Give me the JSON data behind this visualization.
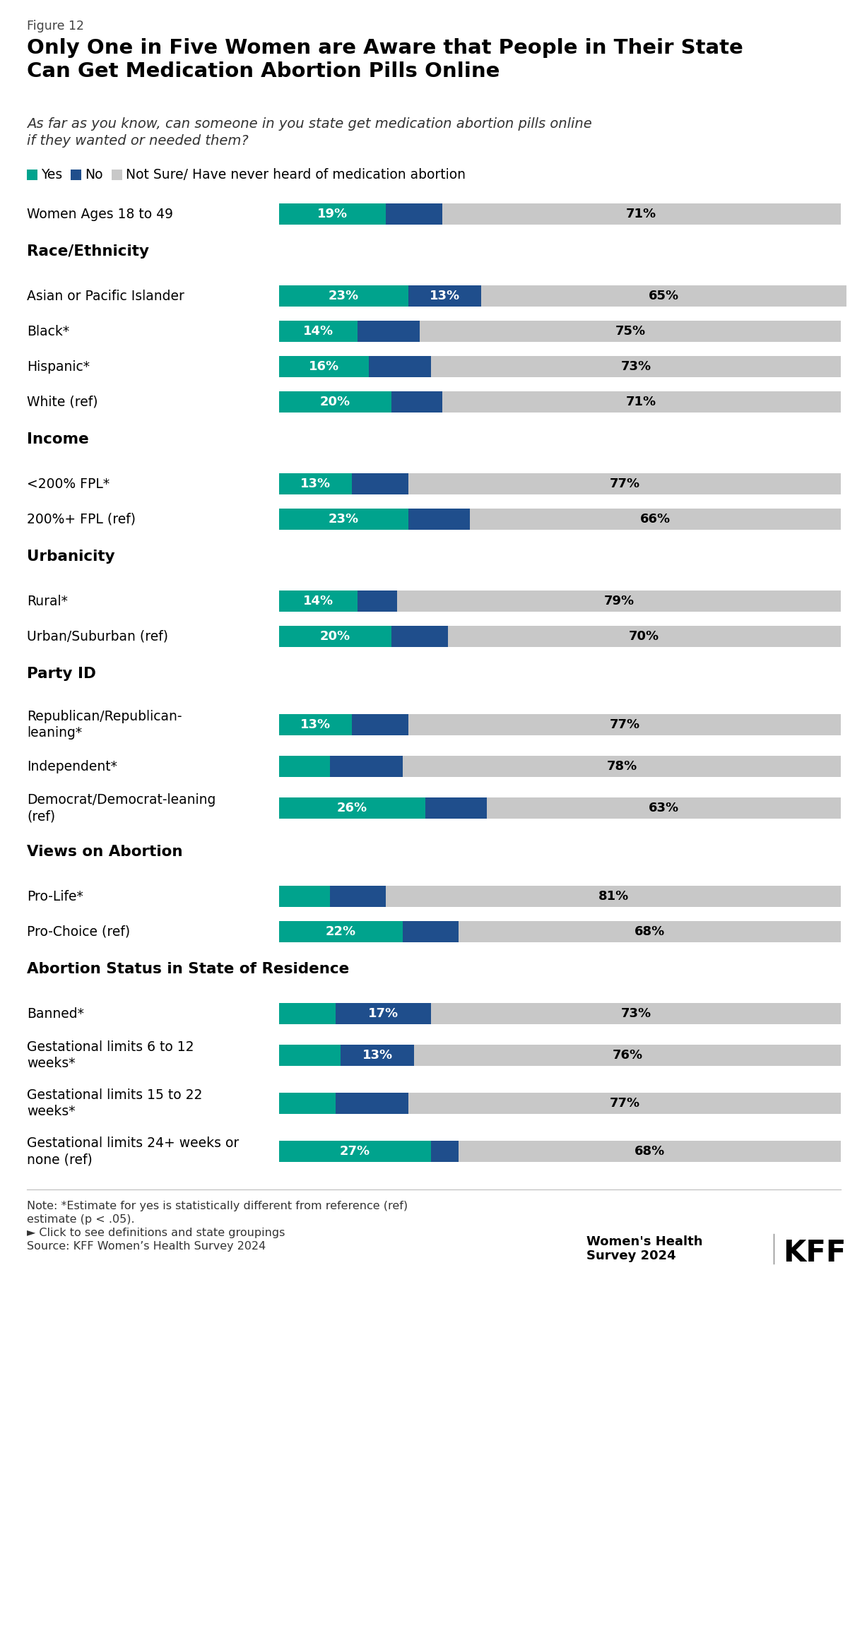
{
  "figure_label": "Figure 12",
  "title": "Only One in Five Women are Aware that People in Their State\nCan Get Medication Abortion Pills Online",
  "subtitle": "As far as you know, can someone in you state get medication abortion pills online\nif they wanted or needed them?",
  "legend": [
    "Yes",
    "No",
    "Not Sure/ Have never heard of medication abortion"
  ],
  "colors": {
    "yes": "#00a38d",
    "no": "#1f4e8c",
    "not_sure": "#c8c8c8",
    "bg": "#ffffff"
  },
  "rows": [
    {
      "label": "Women Ages 18 to 49",
      "yes": 19,
      "no": 10,
      "not_sure": 71,
      "is_section": false,
      "is_overall": true,
      "show_yes_label": true,
      "show_no_label": false,
      "show_ns_label": true
    },
    {
      "label": "Race/Ethnicity",
      "yes": null,
      "no": null,
      "not_sure": null,
      "is_section": true
    },
    {
      "label": "Asian or Pacific Islander",
      "yes": 23,
      "no": 13,
      "not_sure": 65,
      "is_section": false,
      "is_overall": false,
      "show_yes_label": true,
      "show_no_label": true,
      "show_ns_label": true
    },
    {
      "label": "Black*",
      "yes": 14,
      "no": 11,
      "not_sure": 75,
      "is_section": false,
      "is_overall": false,
      "show_yes_label": true,
      "show_no_label": false,
      "show_ns_label": true
    },
    {
      "label": "Hispanic*",
      "yes": 16,
      "no": 11,
      "not_sure": 73,
      "is_section": false,
      "is_overall": false,
      "show_yes_label": true,
      "show_no_label": false,
      "show_ns_label": true
    },
    {
      "label": "White (ref)",
      "yes": 20,
      "no": 9,
      "not_sure": 71,
      "is_section": false,
      "is_overall": false,
      "show_yes_label": true,
      "show_no_label": false,
      "show_ns_label": true
    },
    {
      "label": "Income",
      "yes": null,
      "no": null,
      "not_sure": null,
      "is_section": true
    },
    {
      "label": "<200% FPL*",
      "yes": 13,
      "no": 10,
      "not_sure": 77,
      "is_section": false,
      "is_overall": false,
      "show_yes_label": true,
      "show_no_label": false,
      "show_ns_label": true
    },
    {
      "label": "200%+ FPL (ref)",
      "yes": 23,
      "no": 11,
      "not_sure": 66,
      "is_section": false,
      "is_overall": false,
      "show_yes_label": true,
      "show_no_label": false,
      "show_ns_label": true
    },
    {
      "label": "Urbanicity",
      "yes": null,
      "no": null,
      "not_sure": null,
      "is_section": true
    },
    {
      "label": "Rural*",
      "yes": 14,
      "no": 7,
      "not_sure": 79,
      "is_section": false,
      "is_overall": false,
      "show_yes_label": true,
      "show_no_label": false,
      "show_ns_label": true
    },
    {
      "label": "Urban/Suburban (ref)",
      "yes": 20,
      "no": 10,
      "not_sure": 70,
      "is_section": false,
      "is_overall": false,
      "show_yes_label": true,
      "show_no_label": false,
      "show_ns_label": true
    },
    {
      "label": "Party ID",
      "yes": null,
      "no": null,
      "not_sure": null,
      "is_section": true
    },
    {
      "label": "Republican/Republican-\nleaning*",
      "yes": 13,
      "no": 10,
      "not_sure": 77,
      "is_section": false,
      "is_overall": false,
      "show_yes_label": true,
      "show_no_label": false,
      "show_ns_label": true
    },
    {
      "label": "Independent*",
      "yes": 9,
      "no": 13,
      "not_sure": 78,
      "is_section": false,
      "is_overall": false,
      "show_yes_label": false,
      "show_no_label": false,
      "show_ns_label": true
    },
    {
      "label": "Democrat/Democrat-leaning\n(ref)",
      "yes": 26,
      "no": 11,
      "not_sure": 63,
      "is_section": false,
      "is_overall": false,
      "show_yes_label": true,
      "show_no_label": false,
      "show_ns_label": true
    },
    {
      "label": "Views on Abortion",
      "yes": null,
      "no": null,
      "not_sure": null,
      "is_section": true
    },
    {
      "label": "Pro-Life*",
      "yes": 9,
      "no": 10,
      "not_sure": 81,
      "is_section": false,
      "is_overall": false,
      "show_yes_label": false,
      "show_no_label": false,
      "show_ns_label": true
    },
    {
      "label": "Pro-Choice (ref)",
      "yes": 22,
      "no": 10,
      "not_sure": 68,
      "is_section": false,
      "is_overall": false,
      "show_yes_label": true,
      "show_no_label": false,
      "show_ns_label": true
    },
    {
      "label": "Abortion Status in State of Residence",
      "yes": null,
      "no": null,
      "not_sure": null,
      "is_section": true
    },
    {
      "label": "Banned*",
      "yes": 10,
      "no": 17,
      "not_sure": 73,
      "is_section": false,
      "is_overall": false,
      "show_yes_label": false,
      "show_no_label": true,
      "show_ns_label": true
    },
    {
      "label": "Gestational limits 6 to 12\nweeks*",
      "yes": 11,
      "no": 13,
      "not_sure": 76,
      "is_section": false,
      "is_overall": false,
      "show_yes_label": false,
      "show_no_label": true,
      "show_ns_label": true
    },
    {
      "label": "Gestational limits 15 to 22\nweeks*",
      "yes": 10,
      "no": 13,
      "not_sure": 77,
      "is_section": false,
      "is_overall": false,
      "show_yes_label": false,
      "show_no_label": false,
      "show_ns_label": true
    },
    {
      "label": "Gestational limits 24+ weeks or\nnone (ref)",
      "yes": 27,
      "no": 5,
      "not_sure": 68,
      "is_section": false,
      "is_overall": false,
      "show_yes_label": true,
      "show_no_label": false,
      "show_ns_label": true
    }
  ],
  "footnote1": "Note: *Estimate for yes is statistically different from reference (ref)",
  "footnote2": "estimate (p < .05).",
  "footnote3": "► Click to see definitions and state groupings",
  "footnote4": "Source: KFF Women’s Health Survey 2024",
  "source_right1": "Women's Health",
  "source_right2": "Survey 2024"
}
